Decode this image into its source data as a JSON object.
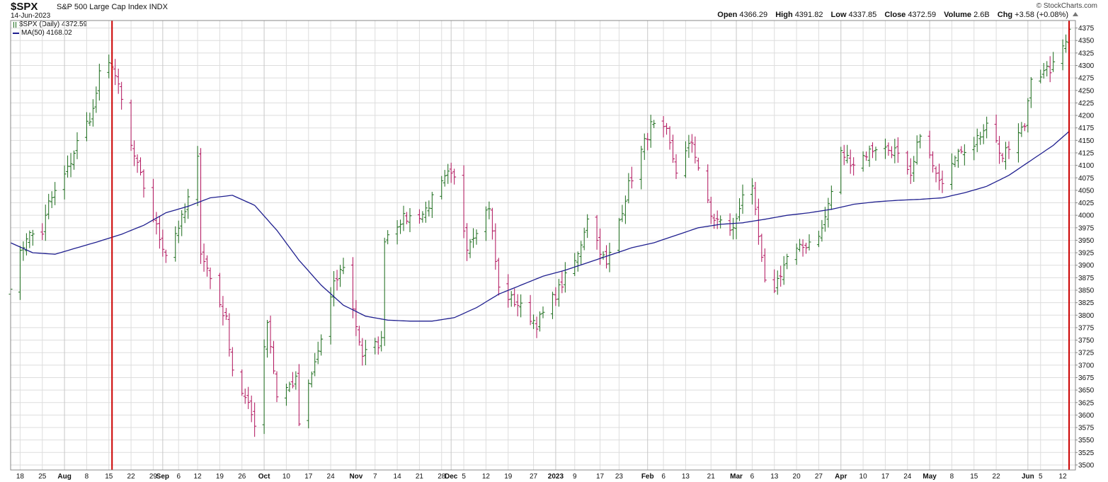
{
  "header": {
    "symbol": "$SPX",
    "description": "S&P 500 Large Cap Index  INDX",
    "date": "14-Jun-2023",
    "open_label": "Open",
    "open_value": "4366.29",
    "high_label": "High",
    "high_value": "4391.82",
    "low_label": "Low",
    "low_value": "4337.85",
    "close_label": "Close",
    "close_value": "4372.59",
    "volume_label": "Volume",
    "volume_value": "2.6B",
    "chg_label": "Chg",
    "chg_value": "+3.58 (+0.08%)",
    "watermark": "© StockCharts.com"
  },
  "legend": {
    "price_label": "$SPX (Daily) 4372.59",
    "ma_label": "MA(50) 4168.02"
  },
  "colors": {
    "up": "#1a6b1a",
    "down": "#b0105a",
    "ma": "#1f1f8f",
    "vline": "#cc0000",
    "grid": "#dddddd"
  },
  "chart_data": {
    "type": "ohlc-bar",
    "ylim": [
      3490,
      4390
    ],
    "yticks": [
      3500,
      3525,
      3550,
      3575,
      3600,
      3625,
      3650,
      3675,
      3700,
      3725,
      3750,
      3775,
      3800,
      3825,
      3850,
      3875,
      3900,
      3925,
      3950,
      3975,
      4000,
      4025,
      4050,
      4075,
      4100,
      4125,
      4150,
      4175,
      4200,
      4225,
      4250,
      4275,
      4300,
      4325,
      4350,
      4375
    ],
    "xlim": [
      "2022-07-15",
      "2023-06-16"
    ],
    "xticks": [
      {
        "date": "2022-07-18",
        "label": "18",
        "major": false
      },
      {
        "date": "2022-07-25",
        "label": "25",
        "major": false
      },
      {
        "date": "2022-08-01",
        "label": "Aug",
        "major": true
      },
      {
        "date": "2022-08-08",
        "label": "8",
        "major": false
      },
      {
        "date": "2022-08-15",
        "label": "15",
        "major": false
      },
      {
        "date": "2022-08-22",
        "label": "22",
        "major": false
      },
      {
        "date": "2022-08-29",
        "label": "29",
        "major": false
      },
      {
        "date": "2022-09-01",
        "label": "Sep",
        "major": true
      },
      {
        "date": "2022-09-06",
        "label": "6",
        "major": false
      },
      {
        "date": "2022-09-12",
        "label": "12",
        "major": false
      },
      {
        "date": "2022-09-19",
        "label": "19",
        "major": false
      },
      {
        "date": "2022-09-26",
        "label": "26",
        "major": false
      },
      {
        "date": "2022-10-03",
        "label": "Oct",
        "major": true
      },
      {
        "date": "2022-10-10",
        "label": "10",
        "major": false
      },
      {
        "date": "2022-10-17",
        "label": "17",
        "major": false
      },
      {
        "date": "2022-10-24",
        "label": "24",
        "major": false
      },
      {
        "date": "2022-11-01",
        "label": "Nov",
        "major": true
      },
      {
        "date": "2022-11-07",
        "label": "7",
        "major": false
      },
      {
        "date": "2022-11-14",
        "label": "14",
        "major": false
      },
      {
        "date": "2022-11-21",
        "label": "21",
        "major": false
      },
      {
        "date": "2022-11-28",
        "label": "28",
        "major": false
      },
      {
        "date": "2022-12-01",
        "label": "Dec",
        "major": true
      },
      {
        "date": "2022-12-05",
        "label": "5",
        "major": false
      },
      {
        "date": "2022-12-12",
        "label": "12",
        "major": false
      },
      {
        "date": "2022-12-19",
        "label": "19",
        "major": false
      },
      {
        "date": "2022-12-27",
        "label": "27",
        "major": false
      },
      {
        "date": "2023-01-03",
        "label": "2023",
        "major": true
      },
      {
        "date": "2023-01-09",
        "label": "9",
        "major": false
      },
      {
        "date": "2023-01-17",
        "label": "17",
        "major": false
      },
      {
        "date": "2023-01-23",
        "label": "23",
        "major": false
      },
      {
        "date": "2023-02-01",
        "label": "Feb",
        "major": true
      },
      {
        "date": "2023-02-06",
        "label": "6",
        "major": false
      },
      {
        "date": "2023-02-13",
        "label": "13",
        "major": false
      },
      {
        "date": "2023-02-21",
        "label": "21",
        "major": false
      },
      {
        "date": "2023-03-01",
        "label": "Mar",
        "major": true
      },
      {
        "date": "2023-03-06",
        "label": "6",
        "major": false
      },
      {
        "date": "2023-03-13",
        "label": "13",
        "major": false
      },
      {
        "date": "2023-03-20",
        "label": "20",
        "major": false
      },
      {
        "date": "2023-03-27",
        "label": "27",
        "major": false
      },
      {
        "date": "2023-04-03",
        "label": "Apr",
        "major": true
      },
      {
        "date": "2023-04-10",
        "label": "10",
        "major": false
      },
      {
        "date": "2023-04-17",
        "label": "17",
        "major": false
      },
      {
        "date": "2023-04-24",
        "label": "24",
        "major": false
      },
      {
        "date": "2023-05-01",
        "label": "May",
        "major": true
      },
      {
        "date": "2023-05-08",
        "label": "8",
        "major": false
      },
      {
        "date": "2023-05-15",
        "label": "15",
        "major": false
      },
      {
        "date": "2023-05-22",
        "label": "22",
        "major": false
      },
      {
        "date": "2023-06-01",
        "label": "Jun",
        "major": true
      },
      {
        "date": "2023-06-05",
        "label": "5",
        "major": false
      },
      {
        "date": "2023-06-12",
        "label": "12",
        "major": false
      }
    ],
    "vlines": [
      "2022-08-16",
      "2023-06-14"
    ],
    "anchors": [
      [
        "2022-07-15",
        3863
      ],
      [
        "2022-07-20",
        3959
      ],
      [
        "2022-07-25",
        3966
      ],
      [
        "2022-07-27",
        4023
      ],
      [
        "2022-08-02",
        4091
      ],
      [
        "2022-08-05",
        4145
      ],
      [
        "2022-08-10",
        4210
      ],
      [
        "2022-08-12",
        4280
      ],
      [
        "2022-08-16",
        4305
      ],
      [
        "2022-08-19",
        4228
      ],
      [
        "2022-08-22",
        4137
      ],
      [
        "2022-08-26",
        4057
      ],
      [
        "2022-08-31",
        3955
      ],
      [
        "2022-09-02",
        3924
      ],
      [
        "2022-09-08",
        4006
      ],
      [
        "2022-09-12",
        4110
      ],
      [
        "2022-09-13",
        3932
      ],
      [
        "2022-09-16",
        3873
      ],
      [
        "2022-09-21",
        3789
      ],
      [
        "2022-09-23",
        3693
      ],
      [
        "2022-09-30",
        3585
      ],
      [
        "2022-10-04",
        3790
      ],
      [
        "2022-10-07",
        3640
      ],
      [
        "2022-10-13",
        3669
      ],
      [
        "2022-10-14",
        3583
      ],
      [
        "2022-10-21",
        3752
      ],
      [
        "2022-10-25",
        3859
      ],
      [
        "2022-10-28",
        3901
      ],
      [
        "2022-11-03",
        3720
      ],
      [
        "2022-11-09",
        3748
      ],
      [
        "2022-11-10",
        3956
      ],
      [
        "2022-11-15",
        3991
      ],
      [
        "2022-11-22",
        4003
      ],
      [
        "2022-11-30",
        4080
      ],
      [
        "2022-12-02",
        4071
      ],
      [
        "2022-12-06",
        3941
      ],
      [
        "2022-12-13",
        4019
      ],
      [
        "2022-12-16",
        3852
      ],
      [
        "2022-12-22",
        3822
      ],
      [
        "2022-12-28",
        3783
      ],
      [
        "2023-01-04",
        3852
      ],
      [
        "2023-01-10",
        3919
      ],
      [
        "2023-01-13",
        3999
      ],
      [
        "2023-01-19",
        3898
      ],
      [
        "2023-01-26",
        4060
      ],
      [
        "2023-02-02",
        4179
      ],
      [
        "2023-02-07",
        4164
      ],
      [
        "2023-02-10",
        4090
      ],
      [
        "2023-02-15",
        4147
      ],
      [
        "2023-02-21",
        3997
      ],
      [
        "2023-02-28",
        3970
      ],
      [
        "2023-03-03",
        4045
      ],
      [
        "2023-03-06",
        4048
      ],
      [
        "2023-03-10",
        3861
      ],
      [
        "2023-03-13",
        3855
      ],
      [
        "2023-03-17",
        3916
      ],
      [
        "2023-03-22",
        3936
      ],
      [
        "2023-03-28",
        3971
      ],
      [
        "2023-04-03",
        4124
      ],
      [
        "2023-04-07",
        4105
      ],
      [
        "2023-04-14",
        4137
      ],
      [
        "2023-04-20",
        4129
      ],
      [
        "2023-04-25",
        4071
      ],
      [
        "2023-04-28",
        4169
      ],
      [
        "2023-05-04",
        4061
      ],
      [
        "2023-05-10",
        4137
      ],
      [
        "2023-05-15",
        4136
      ],
      [
        "2023-05-19",
        4191
      ],
      [
        "2023-05-24",
        4115
      ],
      [
        "2023-05-31",
        4180
      ],
      [
        "2023-06-02",
        4282
      ],
      [
        "2023-06-06",
        4283
      ],
      [
        "2023-06-09",
        4298
      ],
      [
        "2023-06-12",
        4339
      ],
      [
        "2023-06-14",
        4372.59
      ]
    ],
    "ma_anchors": [
      [
        "2022-07-15",
        3945
      ],
      [
        "2022-07-22",
        3925
      ],
      [
        "2022-07-29",
        3922
      ],
      [
        "2022-08-05",
        3935
      ],
      [
        "2022-08-12",
        3948
      ],
      [
        "2022-08-19",
        3962
      ],
      [
        "2022-08-26",
        3980
      ],
      [
        "2022-09-02",
        4005
      ],
      [
        "2022-09-09",
        4018
      ],
      [
        "2022-09-16",
        4035
      ],
      [
        "2022-09-23",
        4040
      ],
      [
        "2022-09-30",
        4020
      ],
      [
        "2022-10-07",
        3970
      ],
      [
        "2022-10-14",
        3910
      ],
      [
        "2022-10-21",
        3860
      ],
      [
        "2022-10-28",
        3820
      ],
      [
        "2022-11-04",
        3798
      ],
      [
        "2022-11-11",
        3790
      ],
      [
        "2022-11-18",
        3788
      ],
      [
        "2022-11-25",
        3788
      ],
      [
        "2022-12-02",
        3795
      ],
      [
        "2022-12-09",
        3815
      ],
      [
        "2022-12-16",
        3842
      ],
      [
        "2022-12-23",
        3860
      ],
      [
        "2022-12-30",
        3878
      ],
      [
        "2023-01-06",
        3890
      ],
      [
        "2023-01-13",
        3905
      ],
      [
        "2023-01-20",
        3920
      ],
      [
        "2023-01-27",
        3935
      ],
      [
        "2023-02-03",
        3945
      ],
      [
        "2023-02-10",
        3960
      ],
      [
        "2023-02-17",
        3975
      ],
      [
        "2023-02-24",
        3982
      ],
      [
        "2023-03-03",
        3985
      ],
      [
        "2023-03-10",
        3992
      ],
      [
        "2023-03-17",
        4000
      ],
      [
        "2023-03-24",
        4005
      ],
      [
        "2023-03-31",
        4012
      ],
      [
        "2023-04-07",
        4022
      ],
      [
        "2023-04-14",
        4027
      ],
      [
        "2023-04-21",
        4030
      ],
      [
        "2023-04-28",
        4032
      ],
      [
        "2023-05-05",
        4035
      ],
      [
        "2023-05-12",
        4045
      ],
      [
        "2023-05-19",
        4058
      ],
      [
        "2023-05-26",
        4080
      ],
      [
        "2023-06-02",
        4110
      ],
      [
        "2023-06-09",
        4140
      ],
      [
        "2023-06-14",
        4168.02
      ]
    ]
  }
}
